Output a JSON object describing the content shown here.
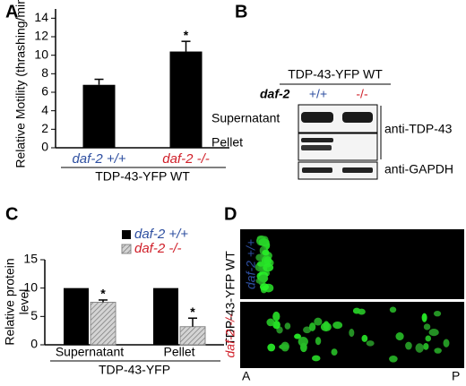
{
  "panels": [
    "A",
    "B",
    "C",
    "D"
  ],
  "chart_data": [
    {
      "type": "bar",
      "ylabel": "Relative Motility (thrashing/min)",
      "xlabel": "TDP-43-YFP WT",
      "categories": [
        "daf-2 +/+",
        "daf-2 -/-"
      ],
      "category_colors": [
        "#2e4fa0",
        "#d0202a"
      ],
      "values": [
        6.8,
        10.4
      ],
      "errors": [
        0.6,
        1.1
      ],
      "value_annotations": [
        null,
        "*"
      ],
      "color": "#000000",
      "ylim": [
        0,
        15
      ],
      "yticks": [
        0,
        2,
        4,
        6,
        8,
        10,
        12,
        14
      ]
    },
    {
      "type": "grouped-bar",
      "ylabel": [
        "Relative protein",
        "level"
      ],
      "xlabel": "TDP-43-YFP",
      "categories": [
        "Supernatant",
        "Pellet"
      ],
      "series": [
        {
          "name": "daf-2 +/+",
          "color": "#000000",
          "label_color": "#2e4fa0",
          "values": [
            10,
            10
          ],
          "errors": [
            0,
            0
          ],
          "value_annotations": [
            null,
            null
          ]
        },
        {
          "name": "daf-2 -/-",
          "color": "#bbbbbb",
          "label_color": "#d0202a",
          "hatch": true,
          "values": [
            7.5,
            3.2
          ],
          "errors": [
            0.4,
            1.5
          ],
          "value_annotations": [
            "*",
            "*"
          ]
        }
      ],
      "legend": "top-right",
      "ylim": [
        0,
        15
      ],
      "yticks": [
        0,
        5,
        10,
        15
      ]
    }
  ],
  "blot": {
    "strain": "TDP-43-YFP WT",
    "gene": "daf-2",
    "genotypes": [
      "+/+",
      "-/-"
    ],
    "rows": [
      "Supernatant",
      "Pellet"
    ],
    "antibodies": [
      "anti-TDP-43",
      "anti-GAPDH"
    ]
  },
  "image": {
    "strain": "TDP-43-YFP WT",
    "rows": [
      "daf-2 +/+",
      "daf-2 -/-"
    ],
    "axis": [
      "A",
      "P"
    ]
  }
}
